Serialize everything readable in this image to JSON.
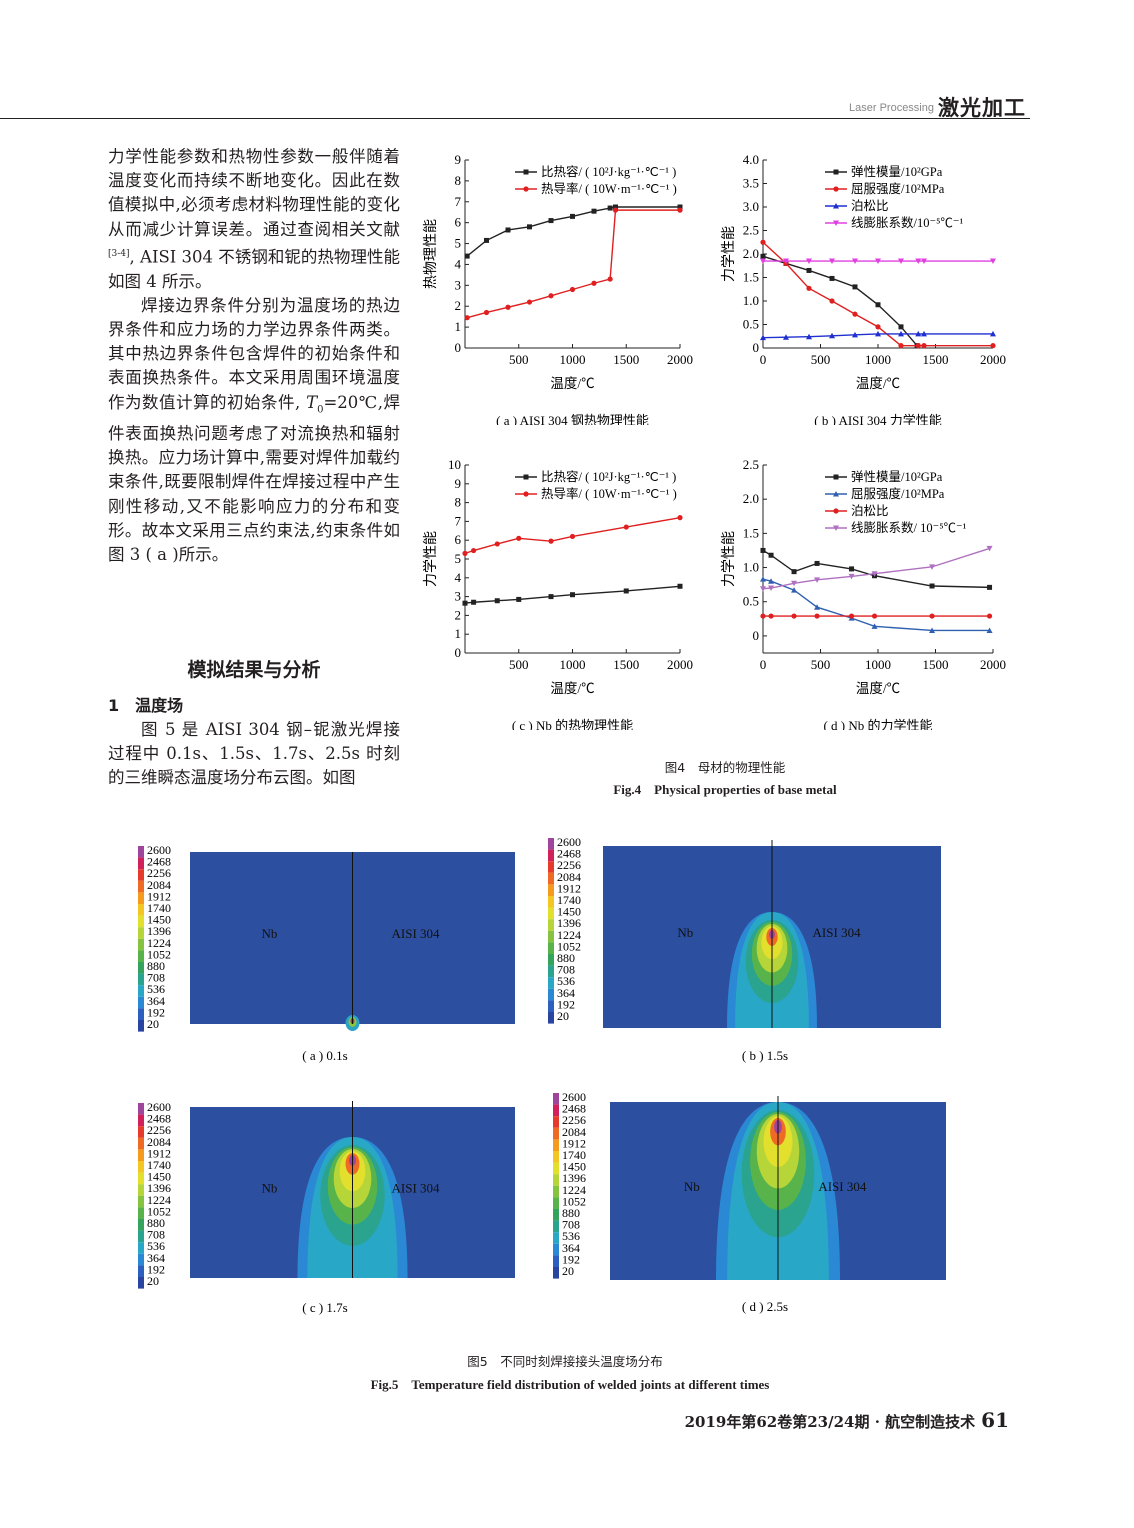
{
  "header": {
    "journal_en": "Laser Processing",
    "section_cn": "激光加工"
  },
  "body": {
    "para1": "力学性能参数和热物性参数一般伴随着温度变化而持续不断地变化。因此在数值模拟中,必须考虑材料物理性能的变化从而减少计算误差。通过查阅相关文献",
    "para1_ref": "[3-4]",
    "para1_end": ", AISI 304 不锈钢和铌的热物理性能如图 4 所示。",
    "para2_a": "焊接边界条件分别为温度场的热边界条件和应力场的力学边界条件两类。其中热边界条件包含焊件的初始条件和表面换热条件。本文采用周围环境温度作为数值计算的初始条件, ",
    "para2_T": "T",
    "para2_sub": "0",
    "para2_b": "=20℃,焊件表面换热问题考虑了对流换热和辐射换热。应力场计算中,需要对焊件加载约束条件,既要限制焊件在焊接过程中产生刚性移动,又不能影响应力的分布和变形。故本文采用三点约束法,约束条件如图 3 ( a )所示。",
    "section_title": "模拟结果与分析",
    "subsection_title": "1　温度场",
    "para3": "图 5 是 AISI 304 钢–铌激光焊接过程中 0.1s、1.5s、1.7s、2.5s 时刻的三维瞬态温度场分布云图。如图"
  },
  "chart_data": [
    {
      "type": "line",
      "id": "a",
      "caption": "( a ) AISI 304 钢热物理性能",
      "xlabel": "温度/℃",
      "ylabel": "热物理性能",
      "xlim": [
        0,
        2000
      ],
      "ylim": [
        0,
        9
      ],
      "xticks": [
        500,
        1000,
        1500,
        2000
      ],
      "yticks": [
        0,
        1,
        2,
        3,
        4,
        5,
        6,
        7,
        8,
        9
      ],
      "legend": "top-right",
      "series": [
        {
          "name": "比热容/ ( 10²J·kg⁻¹·℃⁻¹ )",
          "color": "#222222",
          "x": [
            20,
            200,
            400,
            600,
            800,
            1000,
            1200,
            1350,
            1400,
            2000
          ],
          "y": [
            4.4,
            5.15,
            5.65,
            5.8,
            6.1,
            6.3,
            6.55,
            6.7,
            6.75,
            6.75
          ]
        },
        {
          "name": "热导率/ ( 10W·m⁻¹·℃⁻¹ )",
          "color": "#e02020",
          "x": [
            20,
            200,
            400,
            600,
            800,
            1000,
            1200,
            1350,
            1400,
            2000
          ],
          "y": [
            1.45,
            1.7,
            1.95,
            2.2,
            2.5,
            2.8,
            3.1,
            3.3,
            6.6,
            6.6
          ]
        }
      ]
    },
    {
      "type": "line",
      "id": "b",
      "caption": "( b ) AISI 304 力学性能",
      "xlabel": "温度/℃",
      "ylabel": "力学性能",
      "xlim": [
        0,
        2000
      ],
      "ylim": [
        0,
        4
      ],
      "xticks": [
        0,
        500,
        1000,
        1500,
        2000
      ],
      "yticks": [
        0,
        0.5,
        1.0,
        1.5,
        2.0,
        2.5,
        3.0,
        3.5,
        4.0
      ],
      "ytick_labels": [
        "0",
        "0.5",
        "1.0",
        "1.5",
        "2.0",
        "2.5",
        "3.0",
        "3.5",
        "4.0"
      ],
      "legend": "top-right",
      "series": [
        {
          "name": "弹性模量/10²GPa",
          "color": "#222222",
          "x": [
            0,
            200,
            400,
            600,
            800,
            1000,
            1200,
            1340
          ],
          "y": [
            1.95,
            1.8,
            1.65,
            1.48,
            1.3,
            0.92,
            0.45,
            0.05
          ]
        },
        {
          "name": "屈服强度/10²MPa",
          "color": "#e02020",
          "x": [
            0,
            200,
            400,
            600,
            800,
            1000,
            1200,
            1350,
            1400,
            2000
          ],
          "y": [
            2.25,
            1.8,
            1.27,
            1.0,
            0.72,
            0.45,
            0.05,
            0.05,
            0.05,
            0.05
          ]
        },
        {
          "name": "泊松比",
          "color": "#1f2fd0",
          "x": [
            0,
            200,
            400,
            600,
            800,
            1000,
            1200,
            1350,
            1400,
            2000
          ],
          "y": [
            0.22,
            0.23,
            0.24,
            0.26,
            0.28,
            0.3,
            0.3,
            0.3,
            0.3,
            0.3
          ]
        },
        {
          "name": "线膨胀系数/10⁻⁵℃⁻¹",
          "color": "#e040e0",
          "x": [
            0,
            200,
            400,
            600,
            800,
            1000,
            1200,
            1350,
            1400,
            2000
          ],
          "y": [
            1.85,
            1.85,
            1.85,
            1.85,
            1.85,
            1.85,
            1.85,
            1.85,
            1.85,
            1.85
          ]
        }
      ]
    },
    {
      "type": "line",
      "id": "c",
      "caption": "( c ) Nb 的热物理性能",
      "xlabel": "温度/℃",
      "ylabel": "力学性能",
      "xlim": [
        0,
        2000
      ],
      "ylim": [
        0,
        10
      ],
      "xticks": [
        500,
        1000,
        1500,
        2000
      ],
      "yticks": [
        0,
        1,
        2,
        3,
        4,
        5,
        6,
        7,
        8,
        9,
        10
      ],
      "legend": "top-right",
      "series": [
        {
          "name": "比热容/ ( 10²J·kg⁻¹·℃⁻¹ )",
          "color": "#222222",
          "x": [
            0,
            80,
            300,
            500,
            800,
            1000,
            1500,
            2000
          ],
          "y": [
            2.65,
            2.7,
            2.78,
            2.85,
            3.0,
            3.1,
            3.3,
            3.55
          ]
        },
        {
          "name": "热导率/ ( 10W·m⁻¹·℃⁻¹ )",
          "color": "#e02020",
          "x": [
            0,
            80,
            300,
            500,
            800,
            1000,
            1500,
            2000
          ],
          "y": [
            5.3,
            5.45,
            5.8,
            6.1,
            5.95,
            6.2,
            6.7,
            7.2
          ]
        }
      ]
    },
    {
      "type": "line",
      "id": "d",
      "caption": "( d ) Nb 的力学性能",
      "xlabel": "温度/℃",
      "ylabel": "力学性能",
      "xlim": [
        0,
        2000
      ],
      "ylim": [
        -0.25,
        2.5
      ],
      "xticks": [
        0,
        500,
        1000,
        1500,
        2000
      ],
      "yticks": [
        0,
        0.5,
        1.0,
        1.5,
        2.0,
        2.5
      ],
      "ytick_labels": [
        "0",
        "0.5",
        "1.0",
        "1.5",
        "2.0",
        "2.5"
      ],
      "legend": "top-right",
      "series": [
        {
          "name": "弹性模量/10²GPa",
          "color": "#222222",
          "x": [
            0,
            70,
            270,
            470,
            770,
            970,
            1470,
            1970
          ],
          "y": [
            1.25,
            1.18,
            0.94,
            1.06,
            0.98,
            0.88,
            0.73,
            0.71
          ]
        },
        {
          "name": "屈服强度/10²MPa",
          "color": "#3060b0",
          "x": [
            0,
            70,
            270,
            470,
            770,
            970,
            1470,
            1970
          ],
          "y": [
            0.83,
            0.8,
            0.67,
            0.42,
            0.26,
            0.14,
            0.08,
            0.08
          ]
        },
        {
          "name": "泊松比",
          "color": "#e02020",
          "x": [
            0,
            70,
            270,
            470,
            770,
            970,
            1470,
            1970
          ],
          "y": [
            0.29,
            0.29,
            0.29,
            0.29,
            0.29,
            0.29,
            0.29,
            0.29
          ]
        },
        {
          "name": "线膨胀系数/ 10⁻⁵℃⁻¹",
          "color": "#b070c0",
          "x": [
            0,
            70,
            270,
            470,
            770,
            970,
            1470,
            1970
          ],
          "y": [
            0.69,
            0.7,
            0.77,
            0.82,
            0.87,
            0.91,
            1.01,
            1.28
          ]
        }
      ]
    }
  ],
  "fig4": {
    "caption_cn": "图4　母材的物理性能",
    "caption_en": "Fig.4　Physical properties of base metal"
  },
  "fig5": {
    "caption_cn": "图5　不同时刻焊接接头温度场分布",
    "caption_en": "Fig.5　Temperature field distribution of welded joints at different times",
    "legend_values": [
      "2600",
      "2468",
      "2256",
      "2084",
      "1912",
      "1740",
      "1450",
      "1396",
      "1224",
      "1052",
      "880",
      "708",
      "536",
      "364",
      "192",
      "20"
    ],
    "legend_colors": [
      "#a0459c",
      "#d0215a",
      "#e53a2c",
      "#ef6a24",
      "#f39a1f",
      "#f3c623",
      "#e2df2d",
      "#b6d538",
      "#86c341",
      "#58b44a",
      "#35a35e",
      "#2aa38f",
      "#29a7c6",
      "#2b88d4",
      "#2c5fbe",
      "#2a45a0"
    ],
    "plate_color": "#2d4fa0",
    "left_label": "Nb",
    "right_label": "AISI 304",
    "panels": [
      {
        "caption": "( a ) 0.1s",
        "time_s": 0.1
      },
      {
        "caption": "( b ) 1.5s",
        "time_s": 1.5
      },
      {
        "caption": "( c ) 1.7s",
        "time_s": 1.7
      },
      {
        "caption": "( d ) 2.5s",
        "time_s": 2.5
      }
    ]
  },
  "footer": {
    "issue": "2019年第62卷第23/24期 · 航空制造技术",
    "page": "61"
  }
}
